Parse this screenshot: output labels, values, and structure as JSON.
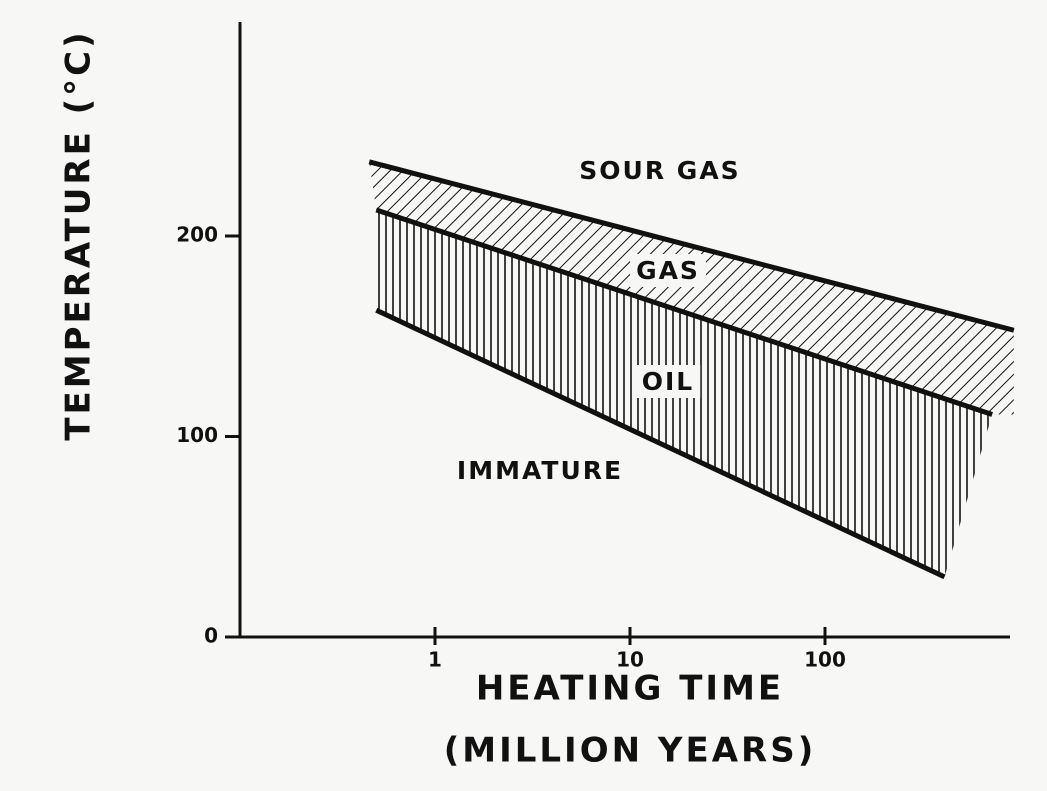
{
  "chart_data": {
    "type": "line",
    "ylabel": "TEMPERATURE (°C)",
    "xlabel": "HEATING TIME",
    "xlabel_units": "(MILLION YEARS)",
    "xscale": "log",
    "xlim": [
      0.1,
      1000
    ],
    "xticks": [
      1,
      10,
      100
    ],
    "ylim": [
      0,
      200
    ],
    "yticks": [
      0,
      100,
      200
    ],
    "series": [
      {
        "color": "#111",
        "x": [
          0.46,
          930
        ],
        "values": [
          237,
          153
        ]
      },
      {
        "color": "#111",
        "x": [
          0.5,
          720
        ],
        "values": [
          213,
          111
        ]
      },
      {
        "color": "#111",
        "x": [
          0.5,
          410
        ],
        "values": [
          163,
          30
        ]
      }
    ],
    "annotations": [
      "SOUR GAS",
      "GAS",
      "OIL",
      "IMMATURE"
    ]
  }
}
